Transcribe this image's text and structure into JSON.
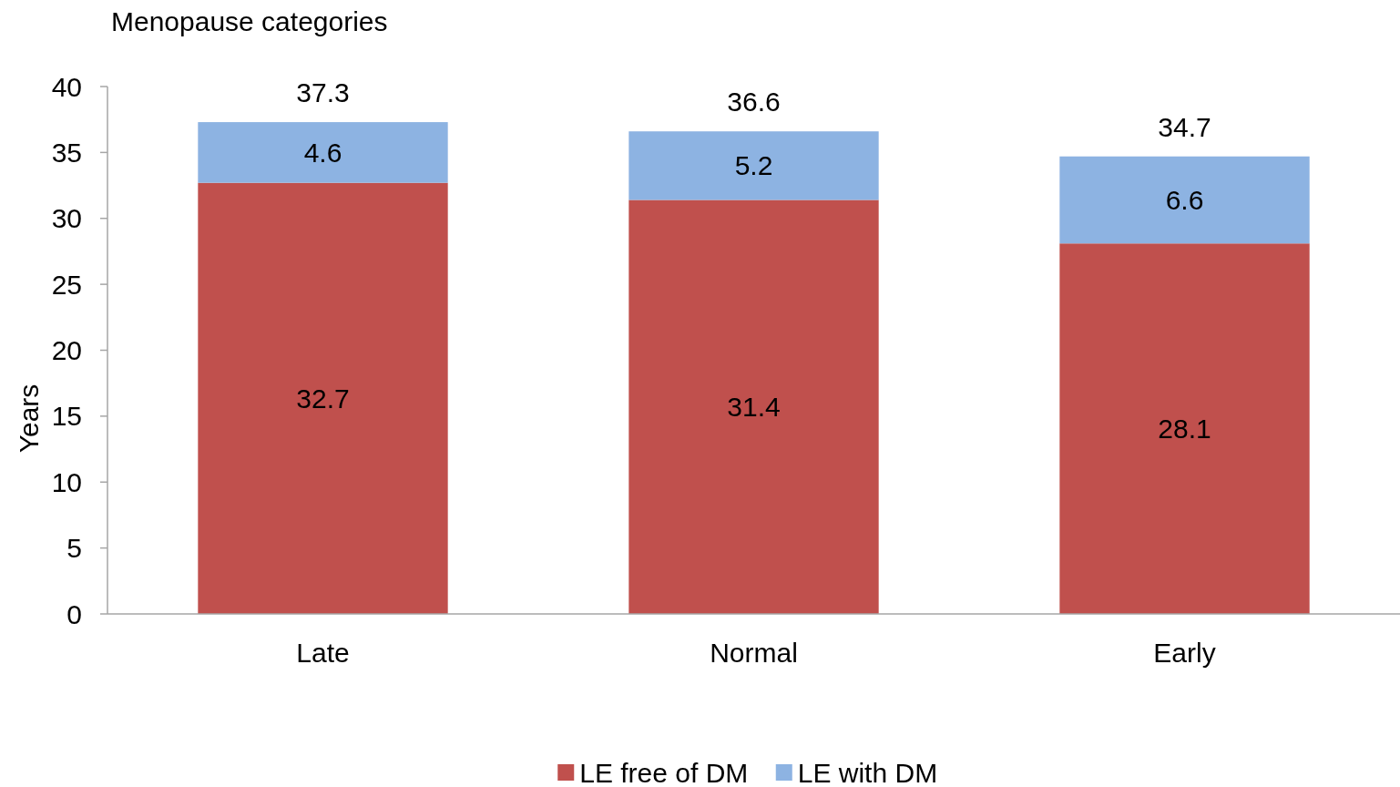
{
  "chart_data": {
    "type": "bar",
    "title": "Menopause categories",
    "ylabel": "Years",
    "categories": [
      "Late",
      "Normal",
      "Early"
    ],
    "stacked": true,
    "series": [
      {
        "name": "LE free of DM",
        "color": "#c0504d",
        "values": [
          32.7,
          31.4,
          28.1
        ]
      },
      {
        "name": "LE with DM",
        "color": "#8db3e2",
        "values": [
          4.6,
          5.2,
          6.6
        ]
      }
    ],
    "ylim": [
      0,
      40
    ],
    "yticks": [
      0,
      5,
      10,
      15,
      20,
      25,
      30,
      35,
      40
    ],
    "data_labels": true,
    "totals": [
      "37.3",
      "36.6",
      "34.7"
    ],
    "legend": "bottom"
  }
}
